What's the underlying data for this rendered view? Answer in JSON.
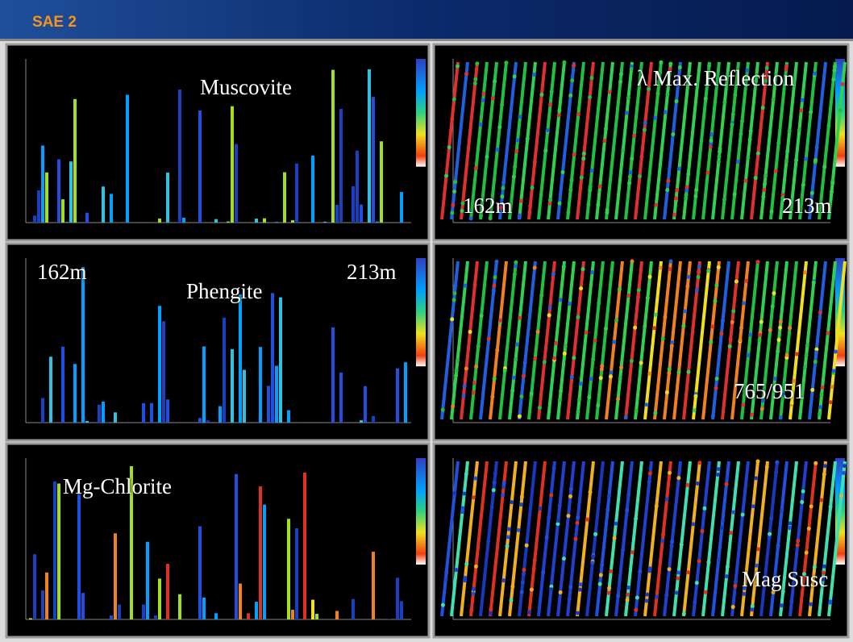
{
  "header": {
    "title": "SAE 2"
  },
  "panels": [
    {
      "labels": [
        "Muscovite"
      ]
    },
    {
      "labels": [
        "λ Max. Reflection",
        "162m",
        "213m"
      ]
    },
    {
      "labels": [
        "162m",
        "Phengite",
        "213m"
      ]
    },
    {
      "labels": [
        "765/951"
      ]
    },
    {
      "labels": [
        "Mg-Chlorite"
      ]
    },
    {
      "labels": [
        "Mag Susc"
      ]
    }
  ]
}
